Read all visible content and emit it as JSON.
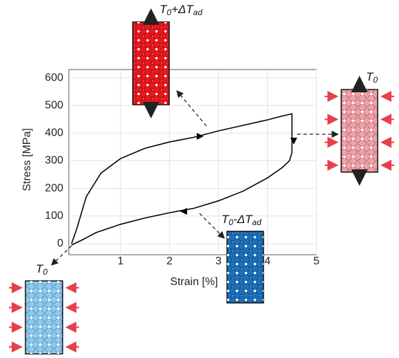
{
  "chart_data": {
    "type": "line",
    "y_label": "Stress [MPa]",
    "x_label": "Strain [%]",
    "xlim": [
      0,
      5
    ],
    "ylim": [
      -40,
      630
    ],
    "xticks": [
      1,
      2,
      3,
      4,
      5
    ],
    "yticks": [
      0,
      100,
      200,
      300,
      400,
      500,
      600
    ],
    "grid": true,
    "color": "#000000",
    "x": [
      0,
      0.1,
      0.3,
      0.6,
      1,
      1.5,
      2,
      2.5,
      3,
      3.5,
      4,
      4.3,
      4.5,
      4.5,
      4.45,
      4.3,
      4,
      3.5,
      3,
      2.5,
      2,
      1.5,
      1,
      0.5,
      0.2,
      0
    ],
    "values": [
      0,
      50,
      170,
      255,
      308,
      345,
      368,
      385,
      408,
      428,
      448,
      462,
      470,
      330,
      300,
      275,
      238,
      190,
      155,
      128,
      112,
      93,
      70,
      40,
      12,
      -5
    ],
    "insets": [
      {
        "parts": [
          "T",
          "0",
          "+ΔT",
          "ad"
        ],
        "color": "#e8181e"
      },
      {
        "parts": [
          "T",
          "0"
        ],
        "color": "#f0a0a6"
      },
      {
        "parts": [
          "T",
          "0",
          "-ΔT",
          "ad"
        ],
        "color": "#1d6fb8"
      },
      {
        "parts": [
          "T",
          "0"
        ],
        "color": "#8ccaf0"
      }
    ]
  }
}
